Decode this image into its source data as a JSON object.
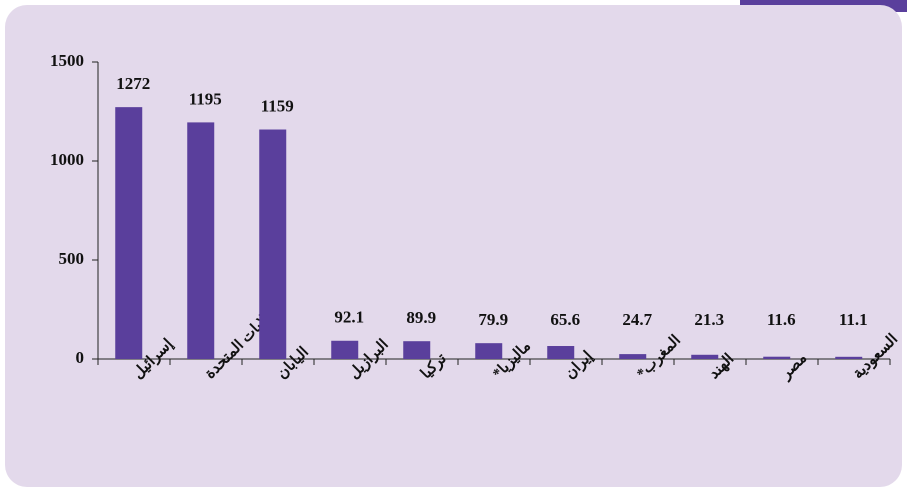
{
  "chart_data": {
    "type": "bar",
    "categories": [
      "إسرائيل",
      "الولايات المتحدة",
      "اليابان",
      "البرازيل",
      "تركيا",
      "ماليزيا*",
      "إيران",
      "المغرب*",
      "الهند",
      "مصر",
      "السعودية"
    ],
    "values": [
      1272,
      1195,
      1159,
      92.1,
      89.9,
      79.9,
      65.6,
      24.7,
      21.3,
      11.6,
      11.1
    ],
    "color": "#5a3f9c",
    "ylim": [
      0,
      1500
    ],
    "yticks": [
      0,
      500,
      1000,
      1500
    ],
    "grid": false
  }
}
